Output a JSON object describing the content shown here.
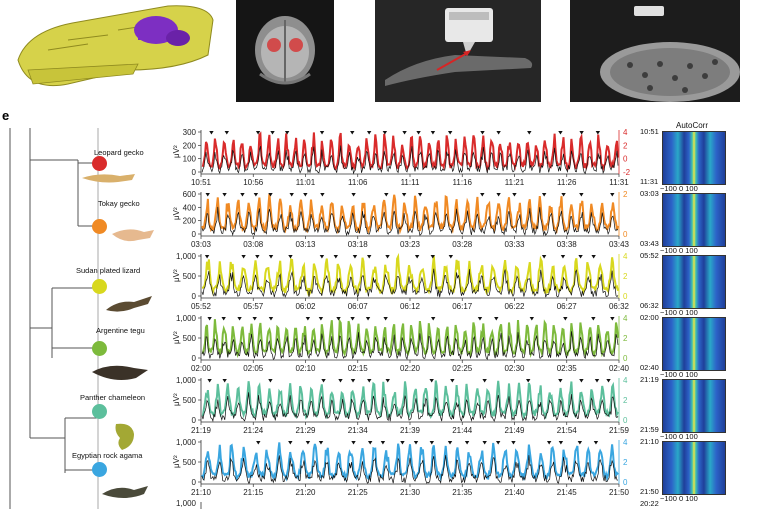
{
  "panel_label": "e",
  "autocorr_title": "AutoCorr",
  "y_unit": "μV²",
  "autocorr_axis": [
    "−100",
    "0",
    "100"
  ],
  "tracks": [
    {
      "species": "Leopard gecko",
      "color": "#d92b2b",
      "yticks": [
        "300",
        "200",
        "100",
        "0"
      ],
      "rticks": [
        "4",
        "2",
        "0",
        "-2"
      ],
      "xticks": [
        "10:51",
        "10:56",
        "11:01",
        "11:06",
        "11:11",
        "11:16",
        "11:21",
        "11:26",
        "11:31"
      ],
      "ac_start": "10:51",
      "ac_end": "11:31"
    },
    {
      "species": "Tokay gecko",
      "color": "#f08a24",
      "yticks": [
        "600",
        "400",
        "200",
        "0"
      ],
      "rticks": [
        "2",
        "0"
      ],
      "xticks": [
        "03:03",
        "03:08",
        "03:13",
        "03:18",
        "03:23",
        "03:28",
        "03:33",
        "03:38",
        "03:43"
      ],
      "ac_start": "03:03",
      "ac_end": "03:43"
    },
    {
      "species": "Sudan plated lizard",
      "color": "#d8d81e",
      "yticks": [
        "1,000",
        "500",
        "0"
      ],
      "rticks": [
        "4",
        "2",
        "0"
      ],
      "xticks": [
        "05:52",
        "05:57",
        "06:02",
        "06:07",
        "06:12",
        "06:17",
        "06:22",
        "06:27",
        "06:32"
      ],
      "ac_start": "05:52",
      "ac_end": "06:32"
    },
    {
      "species": "Argentine tegu",
      "color": "#7dba3c",
      "yticks": [
        "1,000",
        "500",
        "0"
      ],
      "rticks": [
        "4",
        "2",
        "0"
      ],
      "xticks": [
        "02:00",
        "02:05",
        "02:10",
        "02:15",
        "02:20",
        "02:25",
        "02:30",
        "02:35",
        "02:40"
      ],
      "ac_start": "02:00",
      "ac_end": "02:40"
    },
    {
      "species": "Panther chameleon",
      "color": "#5cbf9c",
      "yticks": [
        "1,000",
        "500",
        "0"
      ],
      "rticks": [
        "4",
        "2",
        "0"
      ],
      "xticks": [
        "21:19",
        "21:24",
        "21:29",
        "21:34",
        "21:39",
        "21:44",
        "21:49",
        "21:54",
        "21:59"
      ],
      "ac_start": "21:19",
      "ac_end": "21:59"
    },
    {
      "species": "Egyptian rock agama",
      "color": "#3aa6e0",
      "yticks": [
        "1,000",
        "500",
        "0"
      ],
      "rticks": [
        "4",
        "2",
        "0"
      ],
      "xticks": [
        "21:10",
        "21:15",
        "21:20",
        "21:25",
        "21:30",
        "21:35",
        "21:40",
        "21:45",
        "21:50"
      ],
      "ac_start": "21:10",
      "ac_end": "21:50"
    }
  ],
  "next_track": {
    "ytick": "1,000",
    "ac_start": "20:22"
  }
}
